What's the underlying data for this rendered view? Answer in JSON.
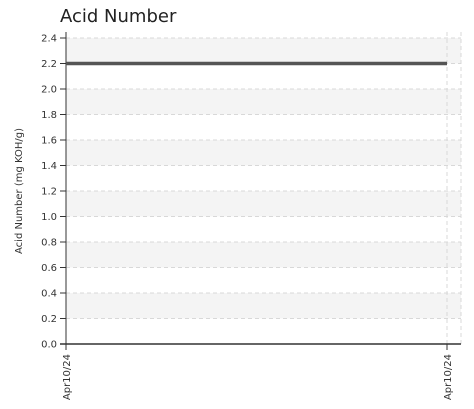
{
  "chart_data": {
    "type": "line",
    "title": "Acid Number",
    "xlabel": "",
    "ylabel": "Acid Number (mg KOH/g)",
    "x_categories": [
      "Apr10/24",
      "Apr10/24"
    ],
    "series": [
      {
        "values": [
          2.2,
          2.2
        ]
      }
    ],
    "ylim": [
      0,
      2.4
    ],
    "yticks": [
      0.0,
      0.2,
      0.4,
      0.6,
      0.8,
      1.0,
      1.2,
      1.4,
      1.6,
      1.8,
      2.0,
      2.2,
      2.4
    ],
    "ytick_labels": [
      "0.0",
      "0.2",
      "0.4",
      "0.6",
      "0.8",
      "1.0",
      "1.2",
      "1.4",
      "1.6",
      "1.8",
      "2.0",
      "2.2",
      "2.4"
    ],
    "grid": true,
    "colors": {
      "line": "#555555",
      "band_alt": "#f4f4f4",
      "grid": "#d8d8d8",
      "axis": "#333333"
    }
  }
}
